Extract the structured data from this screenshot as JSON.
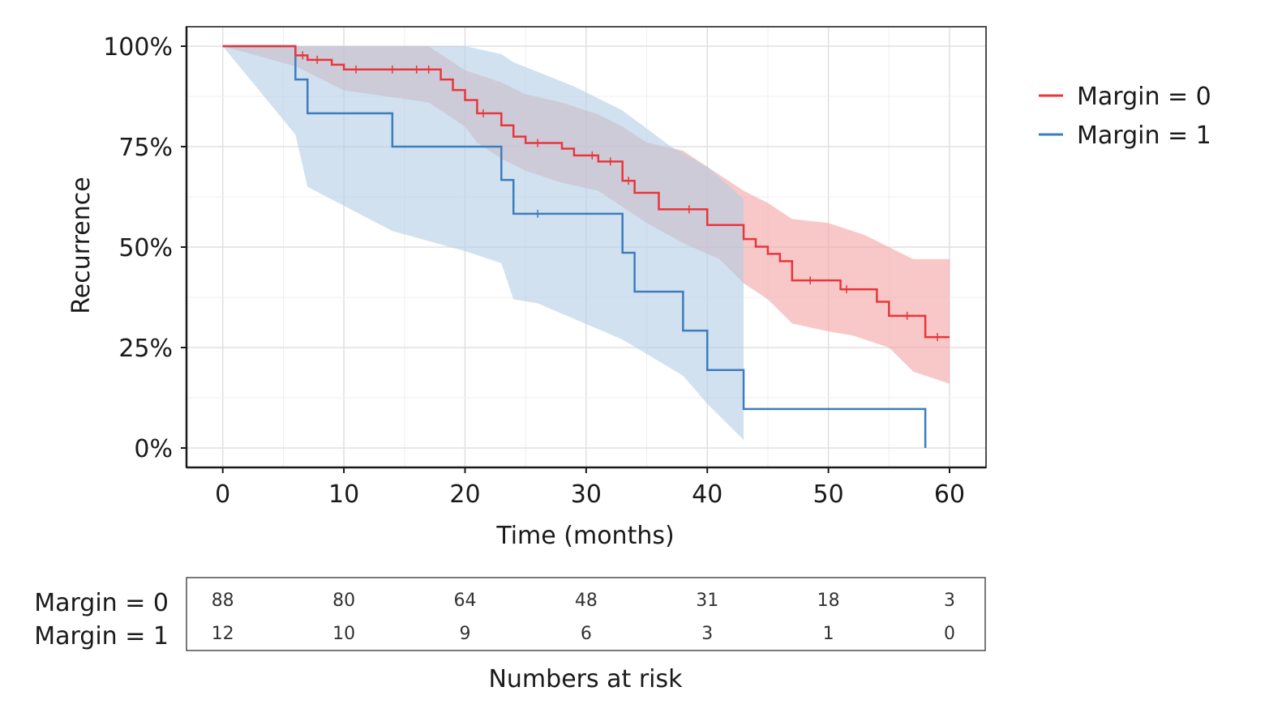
{
  "chart_data": {
    "type": "line",
    "subtype": "kaplan-meier-step",
    "xlabel": "Time (months)",
    "ylabel": "Recurrence",
    "xlim": [
      0,
      60
    ],
    "ylim": [
      0,
      100
    ],
    "x_ticks": [
      0,
      10,
      20,
      30,
      40,
      50,
      60
    ],
    "y_ticks": [
      0,
      25,
      50,
      75,
      100
    ],
    "y_tick_labels": [
      "0%",
      "25%",
      "50%",
      "75%",
      "100%"
    ],
    "grid": true,
    "legend_position": "right",
    "series": [
      {
        "name": "Margin = 0",
        "color": "#e8363a",
        "fill_color": "#f4a3a5",
        "steps": [
          [
            0,
            100
          ],
          [
            6,
            97.7
          ],
          [
            7,
            96.6
          ],
          [
            9,
            95.4
          ],
          [
            10,
            94.2
          ],
          [
            18,
            91.7
          ],
          [
            19,
            89.1
          ],
          [
            20,
            86.6
          ],
          [
            21,
            83.3
          ],
          [
            23,
            80.3
          ],
          [
            24,
            77.5
          ],
          [
            25,
            75.9
          ],
          [
            28,
            74.5
          ],
          [
            29,
            72.8
          ],
          [
            31,
            71.3
          ],
          [
            33,
            66.5
          ],
          [
            34,
            63.5
          ],
          [
            36,
            59.4
          ],
          [
            40,
            55.5
          ],
          [
            43,
            52
          ],
          [
            44,
            50.1
          ],
          [
            45,
            48.3
          ],
          [
            46,
            46.5
          ],
          [
            47,
            41.7
          ],
          [
            51,
            39.5
          ],
          [
            54,
            36.4
          ],
          [
            55,
            32.9
          ],
          [
            58,
            27.6
          ],
          [
            60,
            27.6
          ]
        ],
        "ci_upper": [
          [
            0,
            100
          ],
          [
            6,
            100
          ],
          [
            10,
            100
          ],
          [
            17,
            100
          ],
          [
            18,
            98
          ],
          [
            19,
            96
          ],
          [
            20,
            94
          ],
          [
            23,
            91
          ],
          [
            25,
            88
          ],
          [
            28,
            86
          ],
          [
            31,
            83
          ],
          [
            33,
            80
          ],
          [
            35,
            76
          ],
          [
            38,
            74
          ],
          [
            41,
            68
          ],
          [
            43,
            64
          ],
          [
            45,
            61
          ],
          [
            47,
            57
          ],
          [
            50,
            56
          ],
          [
            53,
            53
          ],
          [
            55,
            50
          ],
          [
            57,
            47
          ],
          [
            60,
            47
          ]
        ],
        "ci_lower": [
          [
            0,
            100
          ],
          [
            6,
            95
          ],
          [
            10,
            89
          ],
          [
            17,
            86
          ],
          [
            18,
            84
          ],
          [
            20,
            80
          ],
          [
            21,
            76
          ],
          [
            23,
            72
          ],
          [
            25,
            69
          ],
          [
            28,
            66
          ],
          [
            31,
            64
          ],
          [
            33,
            60
          ],
          [
            35,
            56
          ],
          [
            38,
            51
          ],
          [
            41,
            47
          ],
          [
            43,
            41
          ],
          [
            45,
            37
          ],
          [
            47,
            31
          ],
          [
            50,
            29
          ],
          [
            52,
            28
          ],
          [
            55,
            25
          ],
          [
            57,
            19
          ],
          [
            60,
            16
          ]
        ],
        "censor_times": [
          6.6,
          7.8,
          11,
          14,
          16,
          17,
          21.5,
          26,
          30.5,
          32,
          33.5,
          38.5,
          48.5,
          51.5,
          56.5,
          59
        ]
      },
      {
        "name": "Margin = 1",
        "color": "#3b7dbf",
        "fill_color": "#b3cde5",
        "steps": [
          [
            0,
            100
          ],
          [
            6,
            91.7
          ],
          [
            7,
            83.3
          ],
          [
            14,
            75
          ],
          [
            23,
            66.7
          ],
          [
            24,
            58.3
          ],
          [
            33,
            48.6
          ],
          [
            34,
            38.9
          ],
          [
            38,
            29.2
          ],
          [
            40,
            19.4
          ],
          [
            43,
            9.7
          ],
          [
            58,
            0
          ]
        ],
        "ci_upper": [
          [
            0,
            100
          ],
          [
            6,
            100
          ],
          [
            11,
            100
          ],
          [
            20,
            100
          ],
          [
            23,
            98
          ],
          [
            24,
            96
          ],
          [
            29,
            90
          ],
          [
            33,
            84
          ],
          [
            37,
            75
          ],
          [
            40,
            70
          ],
          [
            43,
            62
          ]
        ],
        "ci_lower": [
          [
            0,
            100
          ],
          [
            6,
            78
          ],
          [
            7,
            65
          ],
          [
            14,
            54
          ],
          [
            20,
            49
          ],
          [
            23,
            46
          ],
          [
            24,
            37
          ],
          [
            26,
            36
          ],
          [
            33,
            27
          ],
          [
            38,
            18
          ],
          [
            40,
            11
          ],
          [
            43,
            2
          ]
        ],
        "censor_times": [
          26
        ]
      }
    ],
    "risk_table": {
      "title": "Numbers at risk",
      "times": [
        0,
        10,
        20,
        30,
        40,
        50,
        60
      ],
      "rows": [
        {
          "label": "Margin = 0",
          "counts": [
            88,
            80,
            64,
            48,
            31,
            18,
            3
          ]
        },
        {
          "label": "Margin = 1",
          "counts": [
            12,
            10,
            9,
            6,
            3,
            1,
            0
          ]
        }
      ]
    }
  }
}
